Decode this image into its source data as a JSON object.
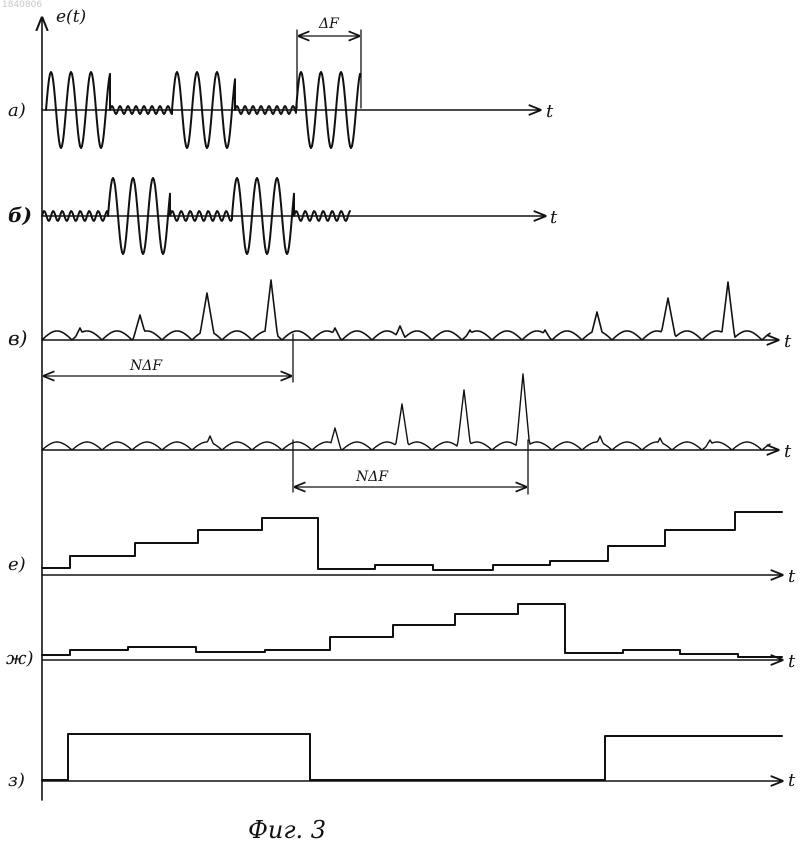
{
  "document_id": "1840806",
  "figure": {
    "y_axis_label": "e(t)",
    "time_label": "t",
    "caption": "Фиг. 3",
    "delta_f_label": "ΔF",
    "n_delta_f_label": "NΔF"
  },
  "rows": [
    {
      "key": "a",
      "label": "а)"
    },
    {
      "key": "b",
      "label": "б)"
    },
    {
      "key": "v",
      "label": "в)"
    },
    {
      "key": "g",
      "label": ""
    },
    {
      "key": "e",
      "label": "е)"
    },
    {
      "key": "zh",
      "label": "ж)"
    },
    {
      "key": "z",
      "label": "з)"
    }
  ]
}
